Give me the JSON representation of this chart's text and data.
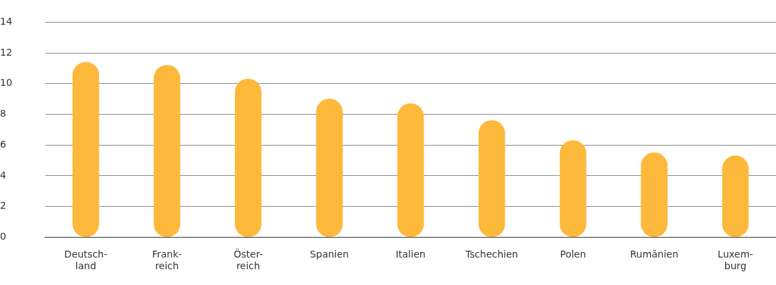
{
  "chart_data": {
    "type": "bar",
    "categories": [
      "Deutsch-\nland",
      "Frank-\nreich",
      "Öster-\nreich",
      "Spanien",
      "Italien",
      "Tschechien",
      "Polen",
      "Rumänien",
      "Luxem-\nburg"
    ],
    "values": [
      11.4,
      11.2,
      10.3,
      9.0,
      8.7,
      7.6,
      6.3,
      5.5,
      5.3
    ],
    "color": "#fdb93c",
    "ylim": [
      0,
      14
    ],
    "yticks": [
      0,
      2,
      4,
      6,
      8,
      10,
      12,
      14
    ],
    "grid": "y"
  }
}
